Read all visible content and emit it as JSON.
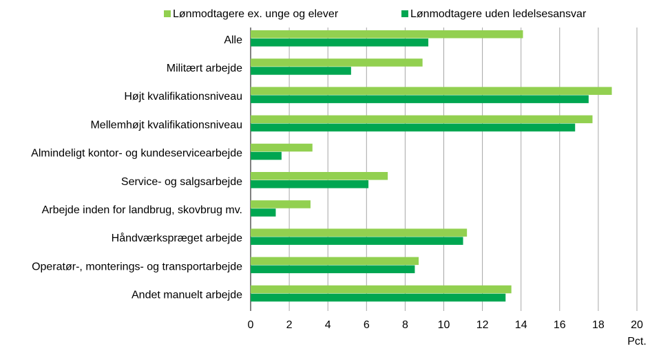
{
  "chart_data": {
    "type": "hbar",
    "categories": [
      "Alle",
      "Militært arbejde",
      "Højt kvalifikationsniveau",
      "Mellemhøjt kvalifikationsniveau",
      "Almindeligt kontor- og kundeservicearbejde",
      "Service- og salgsarbejde",
      "Arbejde inden for landbrug, skovbrug mv.",
      "Håndværkspræget arbejde",
      "Operatør-, monterings- og transportarbejde",
      "Andet manuelt arbejde"
    ],
    "series": [
      {
        "name": "Lønmodtagere ex. unge og elever",
        "color": "#92d050",
        "values": [
          14.1,
          8.9,
          18.7,
          17.7,
          3.2,
          7.1,
          3.1,
          11.2,
          8.7,
          13.5
        ]
      },
      {
        "name": "Lønmodtagere uden ledelsesansvar",
        "color": "#00a651",
        "values": [
          9.2,
          5.2,
          17.5,
          16.8,
          1.6,
          6.1,
          1.3,
          11.0,
          8.5,
          13.2
        ]
      }
    ],
    "x_label": "Pct.",
    "xlim": [
      0,
      20
    ],
    "xticks": [
      0,
      2,
      4,
      6,
      8,
      10,
      12,
      14,
      16,
      18,
      20
    ],
    "grid": true
  }
}
